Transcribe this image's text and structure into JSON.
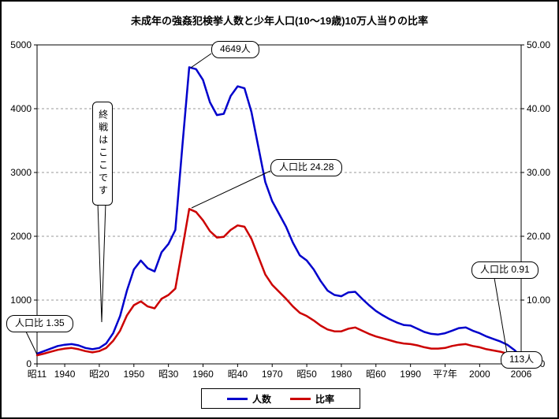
{
  "title": "未成年の強姦犯検挙人数と少年人口(10〜19歳)10万人当りの比率",
  "chart_data": {
    "type": "line",
    "title": "未成年の強姦犯検挙人数と少年人口(10〜19歳)10万人当りの比率",
    "grid": true,
    "legend_position": "bottom",
    "x_range": [
      1936,
      2006
    ],
    "x_ticks": [
      {
        "label": "昭11",
        "year": 1936
      },
      {
        "label": "1940",
        "year": 1940
      },
      {
        "label": "昭20",
        "year": 1945
      },
      {
        "label": "1950",
        "year": 1950
      },
      {
        "label": "昭30",
        "year": 1955
      },
      {
        "label": "1960",
        "year": 1960
      },
      {
        "label": "昭40",
        "year": 1965
      },
      {
        "label": "1970",
        "year": 1970
      },
      {
        "label": "昭50",
        "year": 1975
      },
      {
        "label": "1980",
        "year": 1980
      },
      {
        "label": "昭60",
        "year": 1985
      },
      {
        "label": "1990",
        "year": 1990
      },
      {
        "label": "平7年",
        "year": 1995
      },
      {
        "label": "2000",
        "year": 2000
      },
      {
        "label": "2006",
        "year": 2006
      }
    ],
    "y_left": {
      "range": [
        0,
        5000
      ],
      "ticks": [
        "0",
        "1000",
        "2000",
        "3000",
        "4000",
        "5000"
      ]
    },
    "y_right": {
      "range": [
        0,
        50
      ],
      "ticks": [
        "0.00",
        "10.00",
        "20.00",
        "30.00",
        "40.00",
        "50.00"
      ]
    },
    "years": [
      1936,
      1937,
      1938,
      1939,
      1940,
      1941,
      1942,
      1943,
      1944,
      1945,
      1946,
      1947,
      1948,
      1949,
      1950,
      1951,
      1952,
      1953,
      1954,
      1955,
      1956,
      1957,
      1958,
      1959,
      1960,
      1961,
      1962,
      1963,
      1964,
      1965,
      1966,
      1967,
      1968,
      1969,
      1970,
      1971,
      1972,
      1973,
      1974,
      1975,
      1976,
      1977,
      1978,
      1979,
      1980,
      1981,
      1982,
      1983,
      1984,
      1985,
      1986,
      1987,
      1988,
      1989,
      1990,
      1991,
      1992,
      1993,
      1994,
      1995,
      1996,
      1997,
      1998,
      1999,
      2000,
      2001,
      2002,
      2003,
      2004,
      2005,
      2006
    ],
    "series": [
      {
        "id": "ninzu",
        "name": "人数",
        "axis": "left",
        "color": "#0000cc",
        "values": [
          160,
          200,
          240,
          280,
          300,
          310,
          290,
          250,
          230,
          250,
          320,
          480,
          750,
          1150,
          1480,
          1620,
          1500,
          1450,
          1750,
          1880,
          2100,
          3400,
          4649,
          4620,
          4450,
          4100,
          3900,
          3920,
          4200,
          4350,
          4320,
          3950,
          3400,
          2850,
          2550,
          2350,
          2150,
          1900,
          1700,
          1620,
          1480,
          1300,
          1150,
          1080,
          1060,
          1120,
          1130,
          1020,
          920,
          830,
          760,
          700,
          650,
          610,
          600,
          550,
          500,
          470,
          460,
          480,
          520,
          560,
          570,
          520,
          480,
          430,
          390,
          350,
          300,
          220,
          113
        ]
      },
      {
        "id": "hiritsu",
        "name": "比率",
        "axis": "right",
        "color": "#cc0000",
        "values": [
          1.35,
          1.6,
          1.9,
          2.2,
          2.4,
          2.5,
          2.3,
          2.0,
          1.8,
          2.0,
          2.5,
          3.6,
          5.2,
          7.6,
          9.2,
          9.8,
          9.0,
          8.7,
          10.2,
          10.8,
          11.8,
          18.0,
          24.28,
          23.8,
          22.5,
          20.8,
          19.8,
          19.9,
          21.0,
          21.7,
          21.5,
          19.6,
          16.8,
          14.0,
          12.4,
          11.3,
          10.2,
          9.0,
          8.0,
          7.5,
          6.8,
          6.0,
          5.4,
          5.1,
          5.1,
          5.5,
          5.7,
          5.2,
          4.7,
          4.3,
          4.0,
          3.7,
          3.4,
          3.2,
          3.1,
          2.9,
          2.6,
          2.4,
          2.4,
          2.5,
          2.8,
          3.0,
          3.1,
          2.8,
          2.6,
          2.3,
          2.1,
          1.9,
          1.6,
          1.2,
          0.91
        ]
      }
    ],
    "annotations": [
      {
        "label": "4649人",
        "series": "ninzu",
        "year": 1958,
        "value": 4649
      },
      {
        "label": "人口比 24.28",
        "series": "hiritsu",
        "year": 1958,
        "value": 24.28
      },
      {
        "label": "終戦はここです",
        "year": 1945
      },
      {
        "label": "人口比 1.35",
        "series": "hiritsu",
        "year": 1936,
        "value": 1.35
      },
      {
        "label": "人口比 0.91",
        "series": "hiritsu",
        "year": 2006,
        "value": 0.91
      },
      {
        "label": "113人",
        "series": "ninzu",
        "year": 2006,
        "value": 113
      }
    ]
  }
}
